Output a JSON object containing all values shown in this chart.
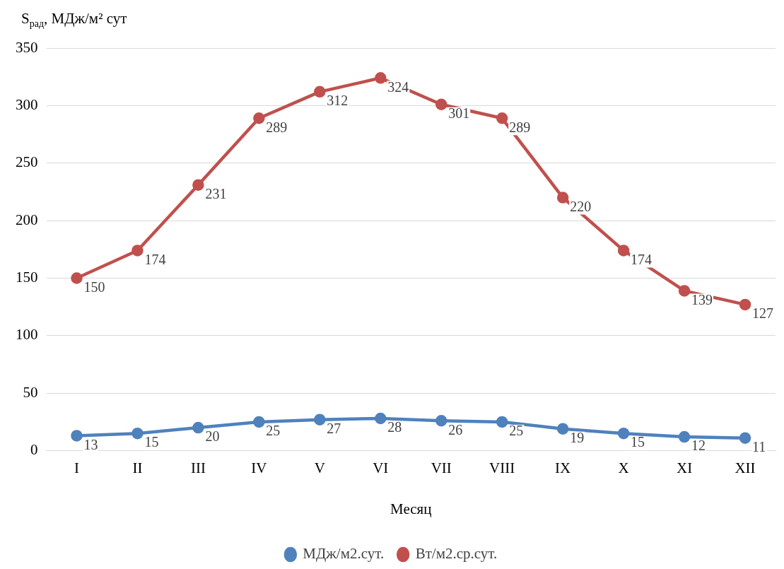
{
  "chart_data": {
    "type": "line",
    "ylabel": "S$_{рад}$, МДж/м² сут",
    "xlabel": "Месяц",
    "categories": [
      "I",
      "II",
      "III",
      "IV",
      "V",
      "VI",
      "VII",
      "VIII",
      "IX",
      "X",
      "XI",
      "XII"
    ],
    "series": [
      {
        "name": "МДж/м2.сут.",
        "color": "#4f81bd",
        "values": [
          13,
          15,
          20,
          25,
          27,
          28,
          26,
          25,
          19,
          15,
          12,
          11
        ]
      },
      {
        "name": "Вт/м2.ср.сут.",
        "color": "#c0504d",
        "values": [
          150,
          174,
          231,
          289,
          312,
          324,
          301,
          289,
          220,
          174,
          139,
          127
        ]
      }
    ],
    "ylim": [
      0,
      350
    ],
    "yticks": [
      0,
      50,
      100,
      150,
      200,
      250,
      300,
      350
    ],
    "grid": "y",
    "legend": "bottom",
    "marker": "circle",
    "data_labels": true
  }
}
